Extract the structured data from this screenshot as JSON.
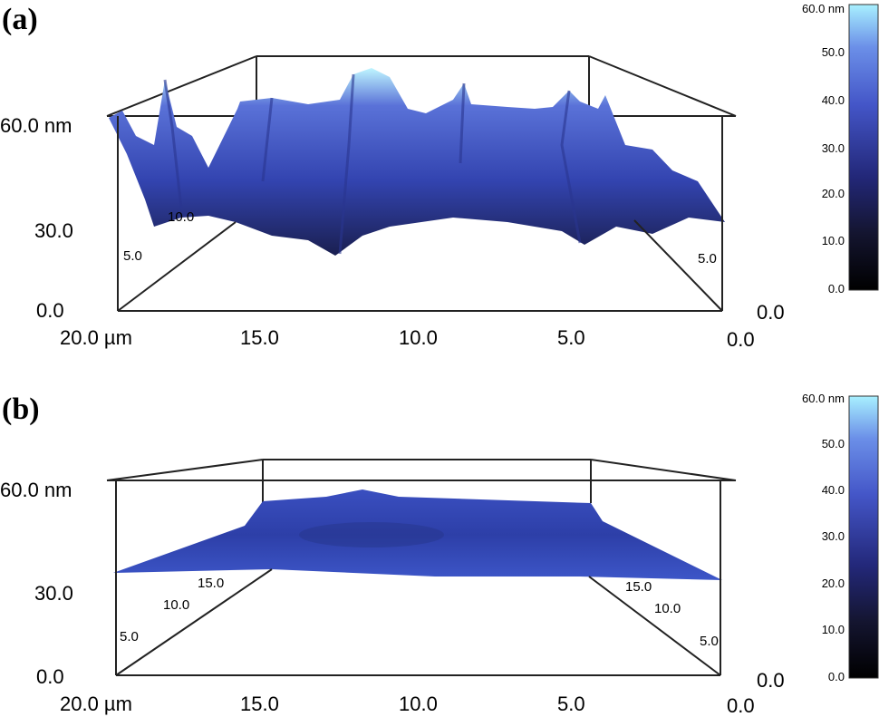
{
  "panels": [
    {
      "label": "(a)",
      "z_labels": [
        "60.0 nm",
        "30.0",
        "0.0"
      ],
      "x_labels": [
        "20.0 µm",
        "15.0",
        "10.0",
        "5.0",
        "0.0"
      ],
      "y_labels_left": [
        "5.0",
        "10.0"
      ],
      "y_labels_right": [
        "5.0",
        "0.0"
      ],
      "colorbar_labels": [
        "60.0 nm",
        "50.0",
        "40.0",
        "30.0",
        "20.0",
        "10.0",
        "0.0"
      ]
    },
    {
      "label": "(b)",
      "z_labels": [
        "60.0 nm",
        "30.0",
        "0.0"
      ],
      "x_labels": [
        "20.0 µm",
        "15.0",
        "10.0",
        "5.0",
        "0.0"
      ],
      "y_labels_left": [
        "15.0",
        "10.0",
        "5.0"
      ],
      "y_labels_right": [
        "15.0",
        "10.0",
        "5.0",
        "0.0"
      ],
      "colorbar_labels": [
        "60.0 nm",
        "50.0",
        "40.0",
        "30.0",
        "20.0",
        "10.0",
        "0.0"
      ]
    }
  ]
}
